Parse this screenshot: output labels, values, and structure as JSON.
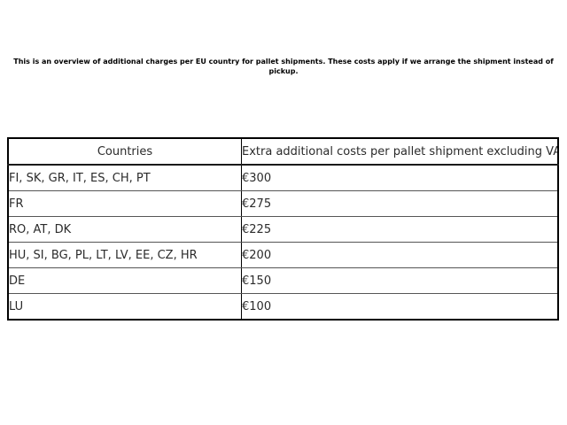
{
  "intro": {
    "text": "This is an overview of additional charges per EU country for pallet shipments. These costs apply if we arrange the shipment instead of pickup."
  },
  "table": {
    "headers": [
      "Countries",
      "Extra additional costs per pallet shipment excluding VAT"
    ],
    "rows": [
      {
        "countries": "FI, SK, GR, IT, ES, CH, PT",
        "cost": "€300"
      },
      {
        "countries": "FR",
        "cost": "€275"
      },
      {
        "countries": "RO, AT, DK",
        "cost": "€225"
      },
      {
        "countries": "HU, SI, BG, PL, LT, LV, EE, CZ, HR",
        "cost": "€200"
      },
      {
        "countries": "DE",
        "cost": "€150"
      },
      {
        "countries": "LU",
        "cost": "€100"
      }
    ]
  },
  "colors": {
    "background": "#ffffff",
    "text": "#2b2b2b",
    "intro_text": "#000000",
    "outer_border": "#000000",
    "row_separator": "#555555"
  }
}
